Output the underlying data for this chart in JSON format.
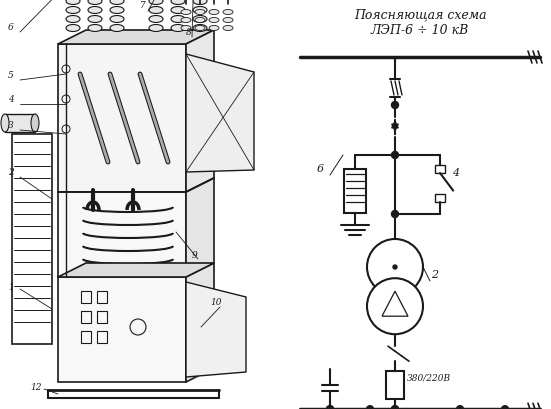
{
  "title_line1": "Поясняющая схема",
  "title_line2": "ЛЭП-6 ÷ 10 кВ",
  "background_color": "#ffffff",
  "line_color": "#1a1a1a",
  "fig_width": 5.51,
  "fig_height": 4.1,
  "dpi": 100
}
